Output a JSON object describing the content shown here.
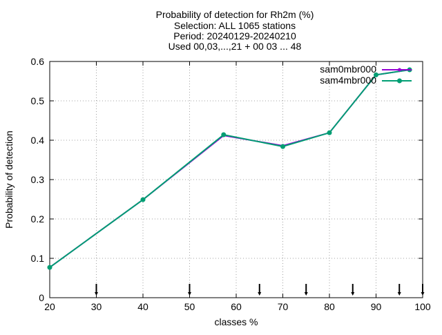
{
  "chart_data": {
    "type": "line",
    "title_lines": [
      "Probability of detection  for Rh2m (%)",
      "Selection: ALL    1065 stations",
      "Period: 20240129-20240210",
      "Used 00,03,...,21 + 00 03 ... 48"
    ],
    "xlabel": "classes %",
    "ylabel": "Probability of detection",
    "xlim": [
      20,
      100
    ],
    "ylim": [
      0,
      0.6
    ],
    "xticks": [
      20,
      30,
      40,
      50,
      60,
      70,
      80,
      90,
      100
    ],
    "yticks": [
      0,
      0.1,
      0.2,
      0.3,
      0.4,
      0.5,
      0.6
    ],
    "ytick_labels": [
      "0",
      "0.1",
      "0.2",
      "0.3",
      "0.4",
      "0.5",
      "0.6"
    ],
    "grid": true,
    "legend_position": "top-right",
    "series": [
      {
        "name": "sam0mbr000",
        "color": "#9400d3",
        "x": [
          20,
          40,
          57.3,
          70,
          80,
          90,
          97.2
        ],
        "y": [
          0.077,
          0.249,
          0.412,
          0.386,
          0.419,
          0.566,
          0.579
        ]
      },
      {
        "name": "sam4mbr000",
        "color": "#009e73",
        "x": [
          20,
          40,
          57.3,
          70,
          80,
          90,
          97.2
        ],
        "y": [
          0.077,
          0.249,
          0.414,
          0.384,
          0.419,
          0.566,
          0.579
        ]
      }
    ],
    "markers_x": [
      30,
      50,
      65,
      75,
      85,
      95,
      100
    ]
  }
}
